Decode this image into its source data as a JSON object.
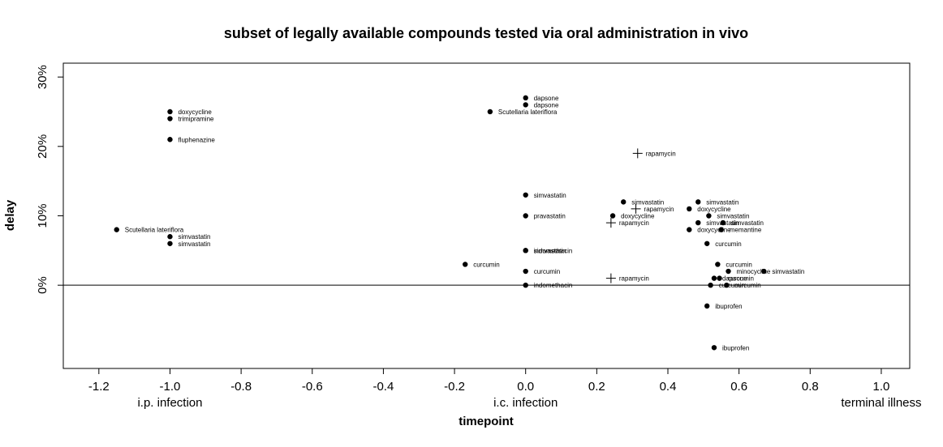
{
  "chart_data": {
    "type": "scatter",
    "title": "subset of legally available compounds tested via oral administration in vivo",
    "xlabel": "timepoint",
    "ylabel": "delay",
    "xlim": [
      -1.3,
      1.08
    ],
    "ylim": [
      -0.12,
      0.32
    ],
    "x_ticks": [
      -1.2,
      -1.0,
      -0.8,
      -0.6,
      -0.4,
      -0.2,
      0.0,
      0.2,
      0.4,
      0.6,
      0.8,
      1.0
    ],
    "x_tick_labels": [
      "-1.2",
      "-1.0",
      "-0.8",
      "-0.6",
      "-0.4",
      "-0.2",
      "0.0",
      "0.2",
      "0.4",
      "0.6",
      "0.8",
      "1.0"
    ],
    "y_ticks": [
      0.0,
      0.1,
      0.2,
      0.3
    ],
    "y_tick_labels": [
      "0%",
      "10%",
      "20%",
      "30%"
    ],
    "reference_line_y": 0,
    "grid": false,
    "phase_labels": [
      {
        "x": -1.0,
        "text": "i.p. infection"
      },
      {
        "x": 0.0,
        "text": "i.c. infection"
      },
      {
        "x": 1.0,
        "text": "terminal illness"
      }
    ],
    "points": [
      {
        "x": -1.0,
        "y": 0.25,
        "label": "doxycycline",
        "marker": "dot"
      },
      {
        "x": -1.0,
        "y": 0.24,
        "label": "trimipramine",
        "marker": "dot"
      },
      {
        "x": -1.0,
        "y": 0.21,
        "label": "fluphenazine",
        "marker": "dot"
      },
      {
        "x": -1.15,
        "y": 0.08,
        "label": "Scutellaria lateriflora",
        "marker": "dot"
      },
      {
        "x": -1.0,
        "y": 0.07,
        "label": "simvastatin",
        "marker": "dot"
      },
      {
        "x": -1.0,
        "y": 0.06,
        "label": "simvastatin",
        "marker": "dot"
      },
      {
        "x": 0.0,
        "y": 0.27,
        "label": "dapsone",
        "marker": "dot"
      },
      {
        "x": 0.0,
        "y": 0.26,
        "label": "dapsone",
        "marker": "dot"
      },
      {
        "x": -0.1,
        "y": 0.25,
        "label": "Scutellaria lateriflora",
        "marker": "dot"
      },
      {
        "x": 0.0,
        "y": 0.13,
        "label": "simvastatin",
        "marker": "dot"
      },
      {
        "x": 0.0,
        "y": 0.1,
        "label": "pravastatin",
        "marker": "dot"
      },
      {
        "x": 0.0,
        "y": 0.05,
        "label": "simvastatin",
        "marker": "dot"
      },
      {
        "x": 0.0,
        "y": 0.05,
        "label": "indomethacin",
        "marker": "dot"
      },
      {
        "x": -0.17,
        "y": 0.03,
        "label": "curcumin",
        "marker": "dot"
      },
      {
        "x": 0.0,
        "y": 0.02,
        "label": "curcumin",
        "marker": "dot"
      },
      {
        "x": 0.0,
        "y": 0.0,
        "label": "indomethacin",
        "marker": "dot"
      },
      {
        "x": 0.315,
        "y": 0.19,
        "label": "rapamycin",
        "marker": "cross"
      },
      {
        "x": 0.275,
        "y": 0.12,
        "label": "simvastatin",
        "marker": "dot"
      },
      {
        "x": 0.31,
        "y": 0.11,
        "label": "rapamycin",
        "marker": "cross"
      },
      {
        "x": 0.245,
        "y": 0.1,
        "label": "doxycycline",
        "marker": "dot"
      },
      {
        "x": 0.24,
        "y": 0.09,
        "label": "rapamycin",
        "marker": "cross"
      },
      {
        "x": 0.24,
        "y": 0.01,
        "label": "rapamycin",
        "marker": "cross"
      },
      {
        "x": 0.485,
        "y": 0.12,
        "label": "simvastatin",
        "marker": "dot"
      },
      {
        "x": 0.46,
        "y": 0.11,
        "label": "doxycycline",
        "marker": "dot"
      },
      {
        "x": 0.515,
        "y": 0.1,
        "label": "simvastatin",
        "marker": "dot"
      },
      {
        "x": 0.485,
        "y": 0.09,
        "label": "simvastatin",
        "marker": "dot"
      },
      {
        "x": 0.555,
        "y": 0.09,
        "label": "simvastatin",
        "marker": "dot"
      },
      {
        "x": 0.46,
        "y": 0.08,
        "label": "doxycycline",
        "marker": "dot"
      },
      {
        "x": 0.55,
        "y": 0.08,
        "label": "memantine",
        "marker": "dot"
      },
      {
        "x": 0.51,
        "y": 0.06,
        "label": "curcumin",
        "marker": "dot"
      },
      {
        "x": 0.54,
        "y": 0.03,
        "label": "curcumin",
        "marker": "dot"
      },
      {
        "x": 0.57,
        "y": 0.02,
        "label": "minocycline",
        "marker": "dot"
      },
      {
        "x": 0.67,
        "y": 0.02,
        "label": "simvastatin",
        "marker": "dot"
      },
      {
        "x": 0.53,
        "y": 0.01,
        "label": "dapsone",
        "marker": "dot"
      },
      {
        "x": 0.545,
        "y": 0.01,
        "label": "curcumin",
        "marker": "dot"
      },
      {
        "x": 0.52,
        "y": 0.0,
        "label": "curcumin",
        "marker": "dot"
      },
      {
        "x": 0.565,
        "y": 0.0,
        "label": "curcumin",
        "marker": "dot"
      },
      {
        "x": 0.51,
        "y": -0.03,
        "label": "ibuprofen",
        "marker": "dot"
      },
      {
        "x": 0.53,
        "y": -0.09,
        "label": "ibuprofen",
        "marker": "dot"
      }
    ]
  }
}
